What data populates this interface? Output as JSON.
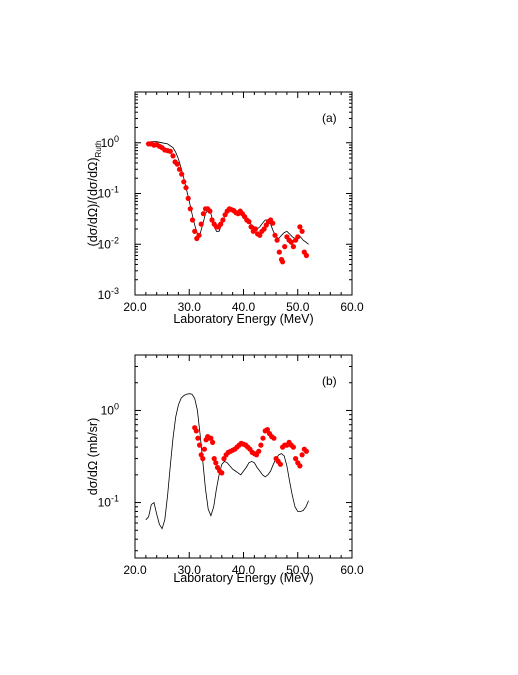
{
  "figure": {
    "panels": [
      "(a)",
      "(b)"
    ]
  },
  "chart_data": [
    {
      "type": "scatter",
      "panel_label": "(a)",
      "title": "",
      "xlabel": "Laboratory Energy (MeV)",
      "ylabel": "(dσ/dΩ)/(dσ/dΩ)Ruth",
      "ylabel_main": "(dσ/dΩ)/(dσ/dΩ)",
      "ylabel_sub": "Ruth",
      "xlim": [
        20.0,
        60.0
      ],
      "ylim": [
        0.001,
        10
      ],
      "yscale": "log",
      "x_tick_labels": [
        "20.0",
        "30.0",
        "40.0",
        "50.0",
        "60.0"
      ],
      "y_tick_labels": [
        {
          "base": "10",
          "exp": "0",
          "value": 1
        },
        {
          "base": "10",
          "exp": "-1",
          "value": 0.1
        },
        {
          "base": "10",
          "exp": "-2",
          "value": 0.01
        },
        {
          "base": "10",
          "exp": "-3",
          "value": 0.001
        }
      ],
      "grid": false,
      "series": [
        {
          "kind": "points",
          "color": "#ff0000",
          "x": [
            22.5,
            23.0,
            23.5,
            24.0,
            24.5,
            25.0,
            25.5,
            26.0,
            26.5,
            27.0,
            27.4,
            27.8,
            28.2,
            28.6,
            29.0,
            29.4,
            29.8,
            30.2,
            30.6,
            31.0,
            31.4,
            31.8,
            32.2,
            32.6,
            33.0,
            33.4,
            33.8,
            34.2,
            34.6,
            35.0,
            35.4,
            35.8,
            36.2,
            36.6,
            37.0,
            37.4,
            37.8,
            38.2,
            38.6,
            39.0,
            39.4,
            39.8,
            40.2,
            40.6,
            41.0,
            41.4,
            41.8,
            42.2,
            42.6,
            43.0,
            43.4,
            43.8,
            44.2,
            44.6,
            45.0,
            45.4,
            45.8,
            46.2,
            46.6,
            47.0,
            47.2,
            47.6,
            48.0,
            48.4,
            48.8,
            49.2,
            49.6,
            50.0,
            50.4,
            50.8,
            51.2,
            51.6
          ],
          "y": [
            0.95,
            0.95,
            0.9,
            0.92,
            0.85,
            0.8,
            0.72,
            0.7,
            0.68,
            0.55,
            0.42,
            0.38,
            0.3,
            0.24,
            0.17,
            0.13,
            0.08,
            0.05,
            0.03,
            0.018,
            0.013,
            0.015,
            0.025,
            0.04,
            0.05,
            0.05,
            0.045,
            0.03,
            0.025,
            0.022,
            0.022,
            0.025,
            0.03,
            0.038,
            0.045,
            0.05,
            0.048,
            0.046,
            0.042,
            0.04,
            0.045,
            0.04,
            0.035,
            0.03,
            0.028,
            0.022,
            0.018,
            0.02,
            0.016,
            0.015,
            0.018,
            0.02,
            0.024,
            0.028,
            0.03,
            0.026,
            0.015,
            0.012,
            0.007,
            0.005,
            0.0045,
            0.009,
            0.014,
            0.012,
            0.011,
            0.009,
            0.012,
            0.014,
            0.022,
            0.018,
            0.007,
            0.006
          ]
        },
        {
          "kind": "line",
          "color": "#000000",
          "x": [
            22.0,
            23.0,
            24.0,
            25.0,
            26.0,
            27.0,
            27.5,
            28.0,
            28.5,
            29.0,
            29.5,
            30.0,
            30.5,
            31.0,
            31.5,
            32.0,
            32.5,
            33.0,
            33.5,
            34.0,
            34.5,
            35.0,
            35.5,
            36.0,
            36.5,
            37.0,
            37.5,
            38.0,
            38.5,
            39.0,
            39.5,
            40.0,
            40.5,
            41.0,
            41.5,
            42.0,
            42.5,
            43.0,
            43.5,
            44.0,
            44.5,
            45.0,
            45.5,
            46.0,
            46.5,
            47.0,
            47.5,
            48.0,
            48.5,
            49.0,
            49.5,
            50.0,
            50.5,
            51.0,
            51.5,
            52.0
          ],
          "y": [
            0.95,
            1.05,
            1.05,
            1.0,
            0.95,
            0.8,
            0.65,
            0.48,
            0.32,
            0.2,
            0.12,
            0.07,
            0.04,
            0.024,
            0.016,
            0.016,
            0.025,
            0.04,
            0.048,
            0.04,
            0.025,
            0.018,
            0.018,
            0.025,
            0.035,
            0.045,
            0.05,
            0.05,
            0.046,
            0.042,
            0.038,
            0.034,
            0.03,
            0.028,
            0.024,
            0.022,
            0.02,
            0.022,
            0.026,
            0.03,
            0.03,
            0.025,
            0.018,
            0.014,
            0.013,
            0.015,
            0.017,
            0.018,
            0.016,
            0.014,
            0.013,
            0.014,
            0.014,
            0.012,
            0.011,
            0.01
          ]
        }
      ]
    },
    {
      "type": "scatter",
      "panel_label": "(b)",
      "title": "",
      "xlabel": "Laboratory Energy (MeV)",
      "ylabel": "dσ/dΩ (mb/sr)",
      "xlim": [
        20.0,
        60.0
      ],
      "ylim": [
        0.025,
        4
      ],
      "yscale": "log",
      "x_tick_labels": [
        "20.0",
        "30.0",
        "40.0",
        "50.0",
        "60.0"
      ],
      "y_tick_labels": [
        {
          "base": "10",
          "exp": "0",
          "value": 1
        },
        {
          "base": "10",
          "exp": "-1",
          "value": 0.1
        }
      ],
      "grid": false,
      "series": [
        {
          "kind": "points",
          "color": "#ff0000",
          "x": [
            31.0,
            31.3,
            31.6,
            31.9,
            32.2,
            32.5,
            32.8,
            33.1,
            33.4,
            33.7,
            34.0,
            34.3,
            34.6,
            34.9,
            35.2,
            35.6,
            36.0,
            36.4,
            36.8,
            37.2,
            37.6,
            38.0,
            38.4,
            38.8,
            39.2,
            39.6,
            40.0,
            40.4,
            40.8,
            41.2,
            41.6,
            42.0,
            42.4,
            42.8,
            43.2,
            43.6,
            44.0,
            44.4,
            44.8,
            45.2,
            45.6,
            46.0,
            46.4,
            46.8,
            47.2,
            47.6,
            48.0,
            48.4,
            48.8,
            49.2,
            49.6,
            50.0,
            50.4,
            50.8,
            51.2,
            51.6
          ],
          "y": [
            0.65,
            0.6,
            0.5,
            0.42,
            0.33,
            0.3,
            0.38,
            0.48,
            0.52,
            0.5,
            0.5,
            0.45,
            0.3,
            0.27,
            0.24,
            0.22,
            0.21,
            0.3,
            0.33,
            0.35,
            0.36,
            0.37,
            0.38,
            0.4,
            0.42,
            0.44,
            0.43,
            0.42,
            0.4,
            0.38,
            0.35,
            0.34,
            0.33,
            0.36,
            0.42,
            0.5,
            0.6,
            0.62,
            0.56,
            0.52,
            0.5,
            0.3,
            0.28,
            0.26,
            0.4,
            0.42,
            0.42,
            0.45,
            0.42,
            0.4,
            0.3,
            0.27,
            0.25,
            0.33,
            0.38,
            0.36
          ]
        },
        {
          "kind": "line",
          "color": "#000000",
          "x": [
            22.0,
            22.5,
            23.0,
            23.5,
            24.0,
            24.5,
            25.0,
            25.5,
            26.0,
            26.5,
            27.0,
            27.5,
            28.0,
            28.5,
            29.0,
            29.5,
            30.0,
            30.5,
            31.0,
            31.5,
            32.0,
            32.5,
            33.0,
            33.5,
            34.0,
            34.5,
            35.0,
            35.5,
            36.0,
            36.5,
            37.0,
            37.5,
            38.0,
            38.5,
            39.0,
            39.5,
            40.0,
            40.5,
            41.0,
            41.5,
            42.0,
            42.5,
            43.0,
            43.5,
            44.0,
            44.5,
            45.0,
            45.5,
            46.0,
            46.5,
            47.0,
            47.5,
            48.0,
            48.5,
            49.0,
            49.5,
            50.0,
            50.5,
            51.0,
            51.5,
            52.0
          ],
          "y": [
            0.065,
            0.07,
            0.095,
            0.1,
            0.075,
            0.058,
            0.052,
            0.065,
            0.12,
            0.25,
            0.5,
            0.85,
            1.15,
            1.35,
            1.45,
            1.5,
            1.52,
            1.5,
            1.35,
            1.0,
            0.55,
            0.28,
            0.14,
            0.085,
            0.072,
            0.09,
            0.14,
            0.2,
            0.26,
            0.28,
            0.27,
            0.25,
            0.23,
            0.22,
            0.21,
            0.2,
            0.22,
            0.24,
            0.27,
            0.28,
            0.27,
            0.24,
            0.22,
            0.2,
            0.19,
            0.2,
            0.22,
            0.26,
            0.3,
            0.33,
            0.34,
            0.32,
            0.25,
            0.17,
            0.12,
            0.09,
            0.08,
            0.08,
            0.082,
            0.09,
            0.105
          ]
        }
      ]
    }
  ]
}
